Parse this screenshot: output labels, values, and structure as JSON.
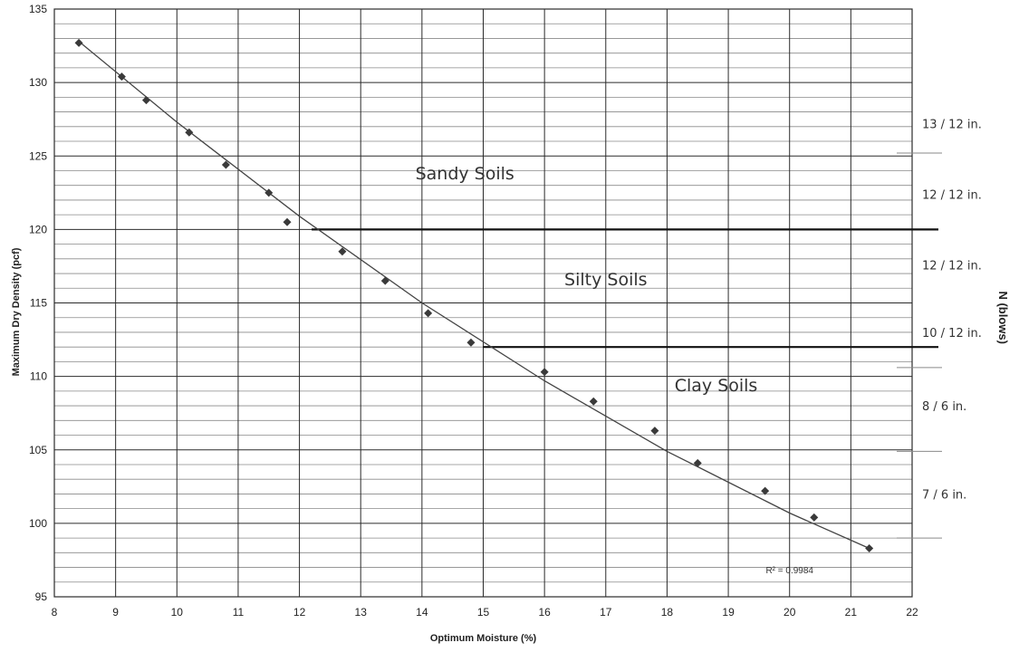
{
  "chart_data": {
    "type": "scatter",
    "xlabel": "Optimum Moisture (%)",
    "ylabel": "Maximum Dry Density (pcf)",
    "right_axis_label": "N (blows)",
    "xlim": [
      8,
      22
    ],
    "ylim": [
      95,
      135
    ],
    "x_ticks": [
      "8",
      "9",
      "10",
      "11",
      "12",
      "13",
      "14",
      "15",
      "16",
      "17",
      "18",
      "19",
      "20",
      "21",
      "22"
    ],
    "y_ticks": [
      "95",
      "100",
      "105",
      "110",
      "115",
      "120",
      "125",
      "130",
      "135"
    ],
    "grid": true,
    "series": [
      {
        "points": [
          {
            "x": 8.4,
            "y": 132.7
          },
          {
            "x": 9.1,
            "y": 130.4
          },
          {
            "x": 9.5,
            "y": 128.8
          },
          {
            "x": 10.2,
            "y": 126.6
          },
          {
            "x": 10.8,
            "y": 124.4
          },
          {
            "x": 11.5,
            "y": 122.5
          },
          {
            "x": 11.8,
            "y": 120.5
          },
          {
            "x": 12.7,
            "y": 118.5
          },
          {
            "x": 13.4,
            "y": 116.5
          },
          {
            "x": 14.1,
            "y": 114.3
          },
          {
            "x": 14.8,
            "y": 112.3
          },
          {
            "x": 16.0,
            "y": 110.3
          },
          {
            "x": 16.8,
            "y": 108.3
          },
          {
            "x": 17.8,
            "y": 106.3
          },
          {
            "x": 18.5,
            "y": 104.1
          },
          {
            "x": 19.6,
            "y": 102.2
          },
          {
            "x": 20.4,
            "y": 100.4
          },
          {
            "x": 21.3,
            "y": 98.3
          }
        ]
      }
    ],
    "trendline": {
      "points": [
        {
          "x": 8.4,
          "y": 132.8
        },
        {
          "x": 10.0,
          "y": 127.3
        },
        {
          "x": 12.0,
          "y": 120.9
        },
        {
          "x": 14.0,
          "y": 115.0
        },
        {
          "x": 16.0,
          "y": 109.7
        },
        {
          "x": 18.0,
          "y": 104.9
        },
        {
          "x": 20.0,
          "y": 100.7
        },
        {
          "x": 21.3,
          "y": 98.3
        }
      ],
      "r_squared": "R² = 0.9984"
    },
    "boundaries": [
      {
        "y": 120,
        "x_start": 12.2
      },
      {
        "y": 112,
        "x_start": 15.0
      }
    ],
    "regions": [
      {
        "label": "Sandy Soils",
        "x": 14.7,
        "y": 123.4
      },
      {
        "label": "Silty Soils",
        "x": 17.0,
        "y": 116.2
      },
      {
        "label": "Clay Soils",
        "x": 18.8,
        "y": 109.0
      }
    ],
    "blow_counts": [
      {
        "label": "13 / 12 in.",
        "y": 127.2
      },
      {
        "label": "12 / 12 in.",
        "y": 122.4
      },
      {
        "label": "12 / 12 in.",
        "y": 117.6
      },
      {
        "label": "10 / 12 in.",
        "y": 113.0
      },
      {
        "label": "8 / 6 in.",
        "y": 108.0
      },
      {
        "label": "7 / 6 in.",
        "y": 102.0
      }
    ]
  },
  "colors": {
    "grid_major": "#2b2b2b",
    "grid_minor": "#8a8a8a",
    "marker": "#3a3a3a",
    "trendline": "#444444",
    "boundary": "#111111"
  }
}
